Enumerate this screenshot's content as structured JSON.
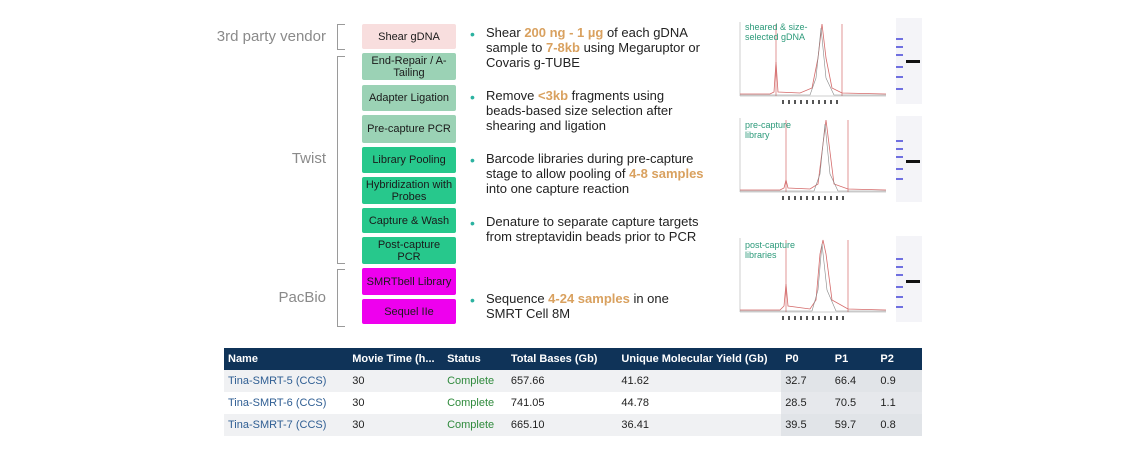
{
  "groups": [
    {
      "label": "3rd party vendor"
    },
    {
      "label": "Twist"
    },
    {
      "label": "PacBio"
    }
  ],
  "steps": [
    {
      "label": "Shear gDNA",
      "color": "#f8dede"
    },
    {
      "label": "End-Repair / A-Tailing",
      "color": "#9bd2b5"
    },
    {
      "label": "Adapter Ligation",
      "color": "#9bd2b5"
    },
    {
      "label": "Pre-capture PCR",
      "color": "#9bd2b5"
    },
    {
      "label": "Library Pooling",
      "color": "#27c88c"
    },
    {
      "label": "Hybridization with Probes",
      "color": "#27c88c"
    },
    {
      "label": "Capture & Wash",
      "color": "#27c88c"
    },
    {
      "label": "Post-capture PCR",
      "color": "#27c88c"
    },
    {
      "label": "SMRTbell Library",
      "color": "#ee00ee"
    },
    {
      "label": "Sequel IIe",
      "color": "#ee00ee"
    }
  ],
  "descriptions": [
    {
      "pre": "Shear ",
      "hl1": "200 ng - 1 µg",
      "mid": " of each gDNA sample to ",
      "hl2": "7-8kb",
      "post": " using Megaruptor or Covaris g-TUBE"
    },
    {
      "pre": "Remove ",
      "hl1": "<3kb",
      "mid": " fragments using beads-based size selection after shearing and ligation",
      "hl2": "",
      "post": ""
    },
    {
      "pre": "Barcode libraries during pre-capture stage to allow pooling of ",
      "hl1": "4-8 samples",
      "mid": " into one capture reaction",
      "hl2": "",
      "post": ""
    },
    {
      "pre": "Denature to separate capture targets from streptavidin beads prior to PCR",
      "hl1": "",
      "mid": "",
      "hl2": "",
      "post": ""
    },
    {
      "pre": "Sequence ",
      "hl1": "4-24 samples",
      "mid": " in one SMRT Cell 8M",
      "hl2": "",
      "post": ""
    }
  ],
  "plots": [
    {
      "label": "sheared & size-selected gDNA"
    },
    {
      "label": "pre-capture library"
    },
    {
      "label": "post-capture libraries"
    }
  ],
  "table": {
    "headers": [
      "Name",
      "Movie Time (h...",
      "Status",
      "Total Bases (Gb)",
      "Unique Molecular Yield (Gb)",
      "P0",
      "P1",
      "P2"
    ],
    "rows": [
      [
        "Tina-SMRT-5 (CCS)",
        "30",
        "Complete",
        "657.66",
        "41.62",
        "32.7",
        "66.4",
        "0.9"
      ],
      [
        "Tina-SMRT-6 (CCS)",
        "30",
        "Complete",
        "741.05",
        "44.78",
        "28.5",
        "70.5",
        "1.1"
      ],
      [
        "Tina-SMRT-7 (CCS)",
        "30",
        "Complete",
        "665.10",
        "36.41",
        "39.5",
        "59.7",
        "0.8"
      ]
    ]
  },
  "colors": {
    "highlight": "#d9a15f",
    "bullet": "#2bb2a0",
    "table_header": "#0f3358",
    "name_link": "#2f5e93",
    "status_complete": "#2f8a3c"
  }
}
